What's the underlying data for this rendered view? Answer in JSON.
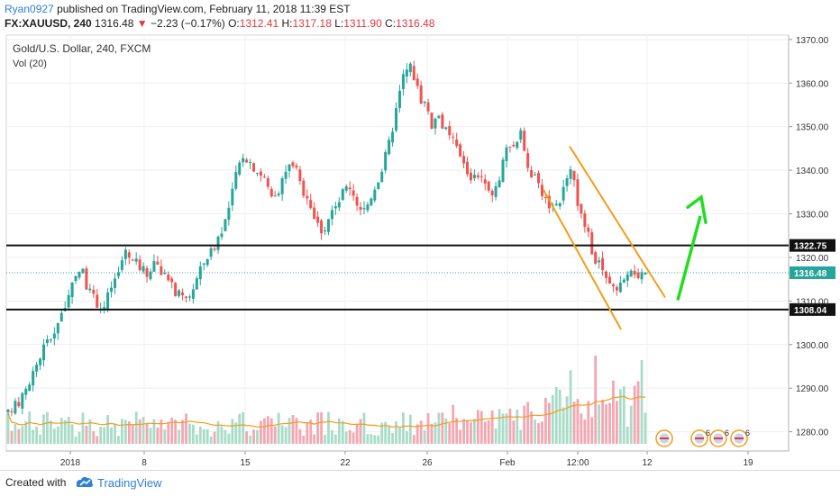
{
  "header": {
    "author": "Ryan0927",
    "published_text": "published on TradingView.com, February 11, 2018 11:39 EST",
    "symbol": "FX:XAUUSD, 240",
    "last": "1316.48",
    "change": "−2.23 (−0.17%)",
    "o_label": "O:",
    "o": "1312.41",
    "h_label": "H:",
    "h": "1317.18",
    "l_label": "L:",
    "l": "1311.90",
    "c_label": "C:",
    "c": "1316.48",
    "down_arrow": "▼"
  },
  "footer": {
    "created_with": "Created with",
    "brand": "TradingView"
  },
  "colors": {
    "up": "#26a69a",
    "down": "#ef5350",
    "vol_up": "#a8dcc8",
    "vol_down": "#f4a6b1",
    "orange": "#f59c1a",
    "green_arrow": "#22dd22"
  },
  "chart_data": {
    "type": "candlestick",
    "title": "Gold/U.S. Dollar, 240, FXCM",
    "indicator": "Vol (20)",
    "ylim": [
      1276,
      1371
    ],
    "y_ticks": [
      1370,
      1360,
      1350,
      1340,
      1330,
      1320,
      1310,
      1300,
      1290,
      1280
    ],
    "y_tick_labels": [
      "1370.00",
      "1360.00",
      "1350.00",
      "1340.00",
      "1330.00",
      "1320.00",
      "1310.00",
      "1300.00",
      "1290.00",
      "1280.00"
    ],
    "x_tick_labels": [
      "2018",
      "8",
      "15",
      "22",
      "26",
      "Feb",
      "12:00",
      "12",
      "19"
    ],
    "horizontal_levels": [
      {
        "value": 1322.75,
        "label": "1322.75"
      },
      {
        "value": 1308.04,
        "label": "1308.04"
      }
    ],
    "last_price": {
      "value": 1316.48,
      "label": "1316.48"
    },
    "close_path": [
      1284,
      1286,
      1288,
      1292,
      1296,
      1300,
      1302,
      1306,
      1310,
      1314,
      1318,
      1312,
      1310,
      1308,
      1313,
      1316,
      1322,
      1319,
      1318,
      1316,
      1320,
      1316,
      1314,
      1312,
      1310,
      1312,
      1316,
      1320,
      1322,
      1326,
      1330,
      1338,
      1344,
      1342,
      1340,
      1338,
      1334,
      1336,
      1340,
      1342,
      1336,
      1334,
      1328,
      1326,
      1330,
      1332,
      1336,
      1334,
      1330,
      1332,
      1336,
      1340,
      1346,
      1354,
      1362,
      1364,
      1358,
      1354,
      1350,
      1352,
      1348,
      1346,
      1342,
      1338,
      1340,
      1336,
      1334,
      1338,
      1344,
      1346,
      1348,
      1340,
      1338,
      1334,
      1330,
      1332,
      1336,
      1340,
      1330,
      1326,
      1320,
      1318,
      1314,
      1312,
      1316,
      1318,
      1316,
      1316.48
    ],
    "annotations": {
      "falling_channel": "orange descending channel",
      "projection": "green upward arrow"
    }
  }
}
